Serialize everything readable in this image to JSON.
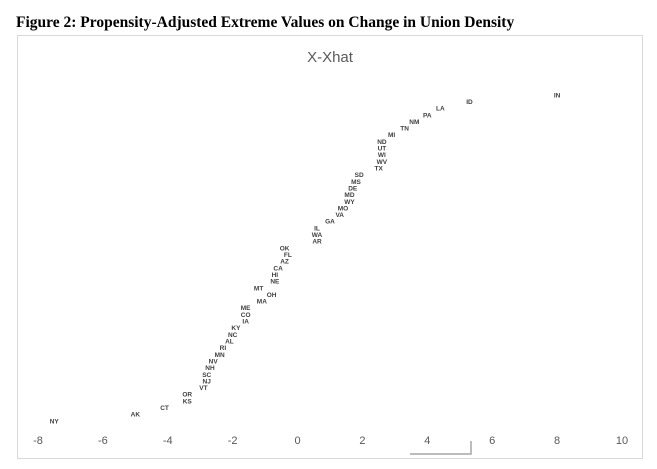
{
  "figure": {
    "title": "Figure 2: Propensity-Adjusted Extreme Values on Change in Union Density"
  },
  "chart_data": {
    "type": "scatter",
    "title": "X-Xhat",
    "xlabel": "",
    "ylabel": "",
    "xlim": [
      -8,
      10
    ],
    "ylim": [
      0,
      52
    ],
    "x_ticks": [
      "-8",
      "-6",
      "-4",
      "-2",
      "0",
      "2",
      "4",
      "6",
      "8",
      "10"
    ],
    "grid": false,
    "legend": "none",
    "text_color": "#595959",
    "label_color": "#404040",
    "points": [
      {
        "label": "NY",
        "x": -7.5,
        "y": 1
      },
      {
        "label": "AK",
        "x": -5,
        "y": 2
      },
      {
        "label": "CT",
        "x": -4.1,
        "y": 3
      },
      {
        "label": "KS",
        "x": -3.4,
        "y": 4
      },
      {
        "label": "OR",
        "x": -3.4,
        "y": 5
      },
      {
        "label": "VT",
        "x": -2.9,
        "y": 6
      },
      {
        "label": "NJ",
        "x": -2.8,
        "y": 7
      },
      {
        "label": "SC",
        "x": -2.8,
        "y": 8
      },
      {
        "label": "NH",
        "x": -2.7,
        "y": 9
      },
      {
        "label": "NV",
        "x": -2.6,
        "y": 10
      },
      {
        "label": "MN",
        "x": -2.4,
        "y": 11
      },
      {
        "label": "RI",
        "x": -2.3,
        "y": 12
      },
      {
        "label": "AL",
        "x": -2.1,
        "y": 13
      },
      {
        "label": "NC",
        "x": -2,
        "y": 14
      },
      {
        "label": "KY",
        "x": -1.9,
        "y": 15
      },
      {
        "label": "IA",
        "x": -1.6,
        "y": 16
      },
      {
        "label": "CO",
        "x": -1.6,
        "y": 17
      },
      {
        "label": "ME",
        "x": -1.6,
        "y": 18
      },
      {
        "label": "MA",
        "x": -1.1,
        "y": 19
      },
      {
        "label": "OH",
        "x": -0.8,
        "y": 20
      },
      {
        "label": "MT",
        "x": -1.2,
        "y": 21
      },
      {
        "label": "NE",
        "x": -0.7,
        "y": 22
      },
      {
        "label": "HI",
        "x": -0.7,
        "y": 23
      },
      {
        "label": "CA",
        "x": -0.6,
        "y": 24
      },
      {
        "label": "AZ",
        "x": -0.4,
        "y": 25
      },
      {
        "label": "FL",
        "x": -0.3,
        "y": 26
      },
      {
        "label": "OK",
        "x": -0.4,
        "y": 27
      },
      {
        "label": "AR",
        "x": 0.6,
        "y": 28
      },
      {
        "label": "WA",
        "x": 0.6,
        "y": 29
      },
      {
        "label": "IL",
        "x": 0.6,
        "y": 30
      },
      {
        "label": "GA",
        "x": 1,
        "y": 31
      },
      {
        "label": "VA",
        "x": 1.3,
        "y": 32
      },
      {
        "label": "MO",
        "x": 1.4,
        "y": 33
      },
      {
        "label": "WY",
        "x": 1.6,
        "y": 34
      },
      {
        "label": "MD",
        "x": 1.6,
        "y": 35
      },
      {
        "label": "DE",
        "x": 1.7,
        "y": 36
      },
      {
        "label": "MS",
        "x": 1.8,
        "y": 37
      },
      {
        "label": "SD",
        "x": 1.9,
        "y": 38
      },
      {
        "label": "TX",
        "x": 2.5,
        "y": 39
      },
      {
        "label": "WV",
        "x": 2.6,
        "y": 40
      },
      {
        "label": "WI",
        "x": 2.6,
        "y": 41
      },
      {
        "label": "UT",
        "x": 2.6,
        "y": 42
      },
      {
        "label": "ND",
        "x": 2.6,
        "y": 43
      },
      {
        "label": "MI",
        "x": 2.9,
        "y": 44
      },
      {
        "label": "TN",
        "x": 3.3,
        "y": 45
      },
      {
        "label": "NM",
        "x": 3.6,
        "y": 46
      },
      {
        "label": "PA",
        "x": 4,
        "y": 47
      },
      {
        "label": "LA",
        "x": 4.4,
        "y": 48
      },
      {
        "label": "ID",
        "x": 5.3,
        "y": 49
      },
      {
        "label": "IN",
        "x": 8,
        "y": 50
      }
    ]
  }
}
